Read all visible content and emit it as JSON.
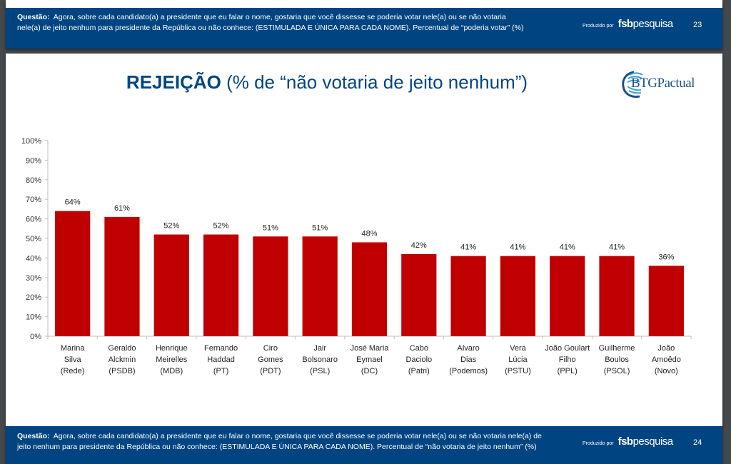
{
  "previous_slide": {
    "question_label": "Questão:",
    "question_line1": "Agora, sobre cada candidato(a) a presidente que eu falar o nome, gostaria que você dissesse se poderia votar nele(a) ou se não votaria",
    "question_line2": "nele(a) de jeito nenhum para presidente da República ou não conhece:  (ESTIMULADA E ÚNICA PARA CADA NOME). Percentual de “poderia votar” (%)",
    "produced_by": "Produzido por",
    "brand_bold": "fsb",
    "brand_rest": "pesquisa",
    "page_number": "23"
  },
  "slide": {
    "title_bold": "REJEIÇÃO",
    "title_rest": " (% de “não votaria de jeito nenhum”)",
    "logo_text": "BTGPactual",
    "footer": {
      "question_label": "Questão:",
      "question_line1": "Agora, sobre cada candidato(a) a presidente que eu falar o nome, gostaria que você dissesse se poderia votar nele(a) ou se não votaria nele(a) de",
      "question_line2": "jeito nenhum para presidente da República ou não conhece:  (ESTIMULADA E ÚNICA PARA CADA NOME). Percentual de “não votaria de jeito nenhum” (%)",
      "produced_by": "Produzido por",
      "brand_bold": "fsb",
      "brand_rest": "pesquisa",
      "page_number": "24"
    }
  },
  "colors": {
    "bar": "#c00000",
    "brand_blue": "#004582"
  },
  "chart_data": {
    "type": "bar",
    "title": "REJEIÇÃO (% de “não votaria de jeito nenhum”)",
    "xlabel": "",
    "ylabel": "",
    "ylim": [
      0,
      100
    ],
    "yticks": [
      "0%",
      "10%",
      "20%",
      "30%",
      "40%",
      "50%",
      "60%",
      "70%",
      "80%",
      "90%",
      "100%"
    ],
    "grid": false,
    "categories": [
      [
        "Marina",
        "Silva",
        "(Rede)"
      ],
      [
        "Geraldo",
        "Alckmin",
        "(PSDB)"
      ],
      [
        "Henrique",
        "Meirelles",
        "(MDB)"
      ],
      [
        "Fernando",
        "Haddad",
        "(PT)"
      ],
      [
        "Ciro",
        "Gomes",
        "(PDT)"
      ],
      [
        "Jair",
        "Bolsonaro",
        "(PSL)"
      ],
      [
        "José Maria",
        "Eymael",
        "(DC)"
      ],
      [
        "Cabo",
        "Daciolo",
        "(Patri)"
      ],
      [
        "Alvaro",
        "Dias",
        "(Podemos)"
      ],
      [
        "Vera",
        "Lúcia",
        "(PSTU)"
      ],
      [
        "João Goulart",
        "Filho",
        "(PPL)"
      ],
      [
        "Guilherme",
        "Boulos",
        "(PSOL)"
      ],
      [
        "João",
        "Amoêdo",
        "(Novo)"
      ]
    ],
    "values": [
      64,
      61,
      52,
      52,
      51,
      51,
      48,
      42,
      41,
      41,
      41,
      41,
      36
    ],
    "value_labels": [
      "64%",
      "61%",
      "52%",
      "52%",
      "51%",
      "51%",
      "48%",
      "42%",
      "41%",
      "41%",
      "41%",
      "41%",
      "36%"
    ]
  }
}
